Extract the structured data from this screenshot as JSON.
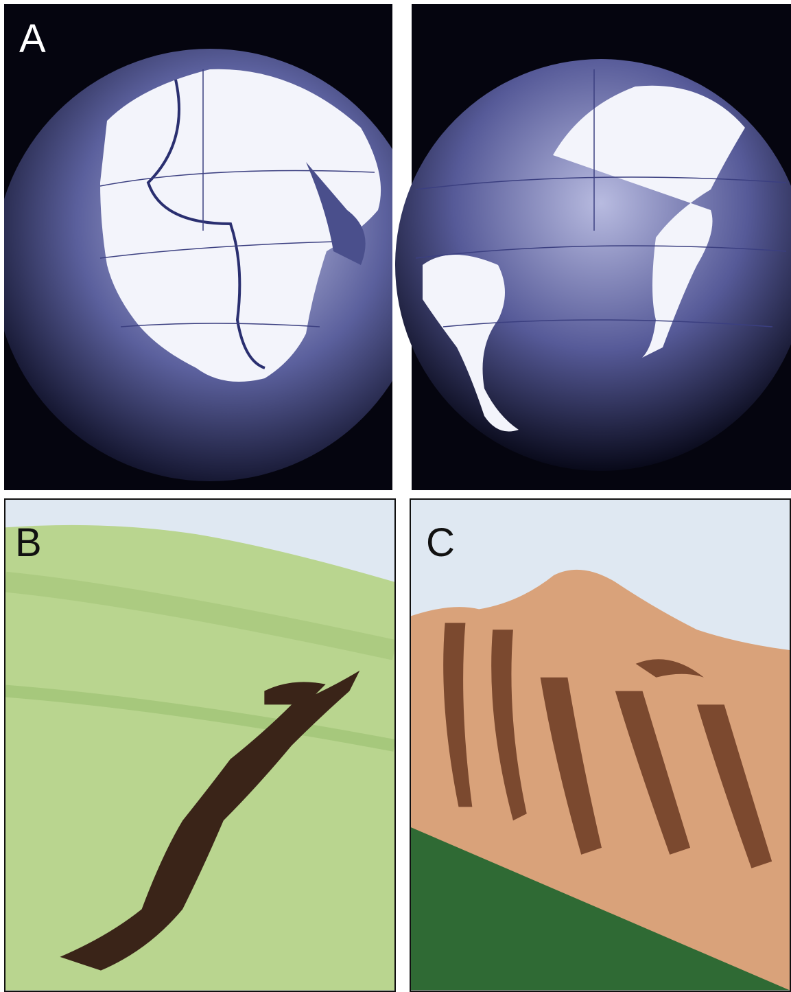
{
  "figure": {
    "panels": [
      {
        "id": "A",
        "label": "A",
        "content": "globe-reconstructions"
      },
      {
        "id": "B",
        "label": "B",
        "content": "green-hillside-with-dark-rock-band"
      },
      {
        "id": "C",
        "label": "C",
        "content": "folded-rock-strata-mountain"
      }
    ],
    "colors": {
      "globe_land": "#f3f4fb",
      "globe_ocean": "#4a4f8c",
      "globe_background": "#05050f",
      "hillside_green": "#b9d58f",
      "rock_band_brown": "#3a2418",
      "sky_blue": "#dfe8f2",
      "strata_tan": "#d9a27a",
      "strata_dark": "#6b3a22",
      "forest_green": "#2f6a34"
    }
  }
}
